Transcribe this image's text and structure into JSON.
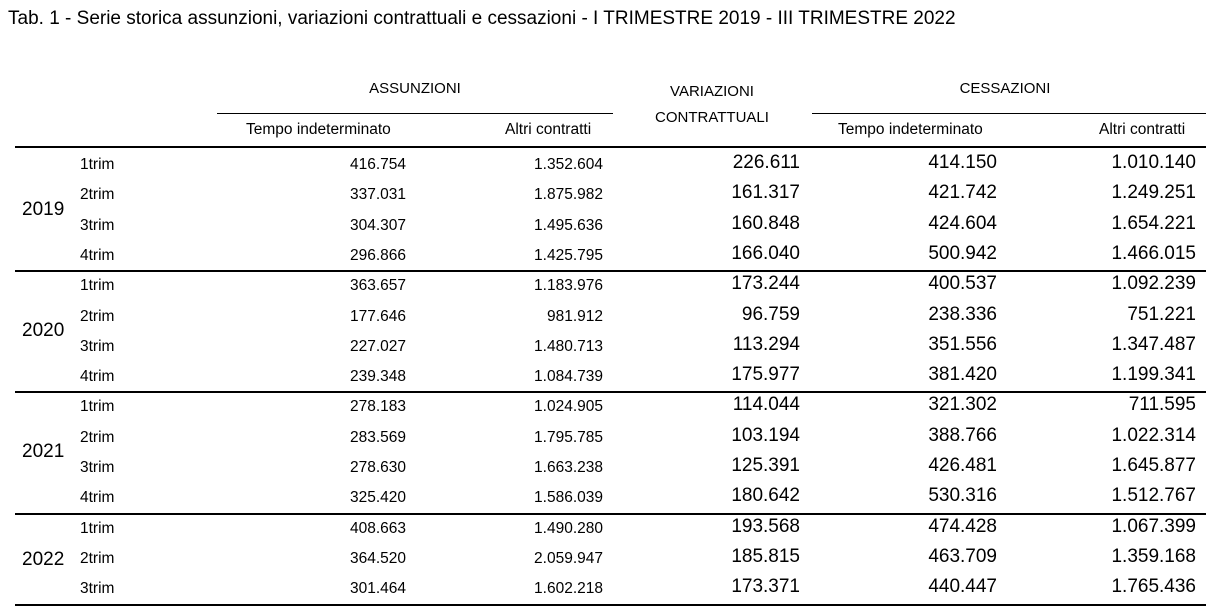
{
  "title": "Tab. 1 - Serie storica assunzioni, variazioni contrattuali e cessazioni - I TRIMESTRE 2019 - III TRIMESTRE 2022",
  "headers": {
    "assunzioni": "ASSUNZIONI",
    "variazioni_line1": "VARIAZIONI",
    "variazioni_line2": "CONTRATTUALI",
    "cessazioni": "CESSAZIONI",
    "tempo_indeterminato": "Tempo indeterminato",
    "altri_contratti": "Altri contratti"
  },
  "years": [
    {
      "year": "2019",
      "rows": [
        {
          "trim": "1trim",
          "ass_ti": "416.754",
          "ass_ac": "1.352.604",
          "var": "226.611",
          "ces_ti": "414.150",
          "ces_ac": "1.010.140"
        },
        {
          "trim": "2trim",
          "ass_ti": "337.031",
          "ass_ac": "1.875.982",
          "var": "161.317",
          "ces_ti": "421.742",
          "ces_ac": "1.249.251"
        },
        {
          "trim": "3trim",
          "ass_ti": "304.307",
          "ass_ac": "1.495.636",
          "var": "160.848",
          "ces_ti": "424.604",
          "ces_ac": "1.654.221"
        },
        {
          "trim": "4trim",
          "ass_ti": "296.866",
          "ass_ac": "1.425.795",
          "var": "166.040",
          "ces_ti": "500.942",
          "ces_ac": "1.466.015"
        }
      ]
    },
    {
      "year": "2020",
      "rows": [
        {
          "trim": "1trim",
          "ass_ti": "363.657",
          "ass_ac": "1.183.976",
          "var": "173.244",
          "ces_ti": "400.537",
          "ces_ac": "1.092.239"
        },
        {
          "trim": "2trim",
          "ass_ti": "177.646",
          "ass_ac": "981.912",
          "var": "96.759",
          "ces_ti": "238.336",
          "ces_ac": "751.221"
        },
        {
          "trim": "3trim",
          "ass_ti": "227.027",
          "ass_ac": "1.480.713",
          "var": "113.294",
          "ces_ti": "351.556",
          "ces_ac": "1.347.487"
        },
        {
          "trim": "4trim",
          "ass_ti": "239.348",
          "ass_ac": "1.084.739",
          "var": "175.977",
          "ces_ti": "381.420",
          "ces_ac": "1.199.341"
        }
      ]
    },
    {
      "year": "2021",
      "rows": [
        {
          "trim": "1trim",
          "ass_ti": "278.183",
          "ass_ac": "1.024.905",
          "var": "114.044",
          "ces_ti": "321.302",
          "ces_ac": "711.595"
        },
        {
          "trim": "2trim",
          "ass_ti": "283.569",
          "ass_ac": "1.795.785",
          "var": "103.194",
          "ces_ti": "388.766",
          "ces_ac": "1.022.314"
        },
        {
          "trim": "3trim",
          "ass_ti": "278.630",
          "ass_ac": "1.663.238",
          "var": "125.391",
          "ces_ti": "426.481",
          "ces_ac": "1.645.877"
        },
        {
          "trim": "4trim",
          "ass_ti": "325.420",
          "ass_ac": "1.586.039",
          "var": "180.642",
          "ces_ti": "530.316",
          "ces_ac": "1.512.767"
        }
      ]
    },
    {
      "year": "2022",
      "rows": [
        {
          "trim": "1trim",
          "ass_ti": "408.663",
          "ass_ac": "1.490.280",
          "var": "193.568",
          "ces_ti": "474.428",
          "ces_ac": "1.067.399"
        },
        {
          "trim": "2trim",
          "ass_ti": "364.520",
          "ass_ac": "2.059.947",
          "var": "185.815",
          "ces_ti": "463.709",
          "ces_ac": "1.359.168"
        },
        {
          "trim": "3trim",
          "ass_ti": "301.464",
          "ass_ac": "1.602.218",
          "var": "173.371",
          "ces_ti": "440.447",
          "ces_ac": "1.765.436"
        }
      ]
    }
  ]
}
